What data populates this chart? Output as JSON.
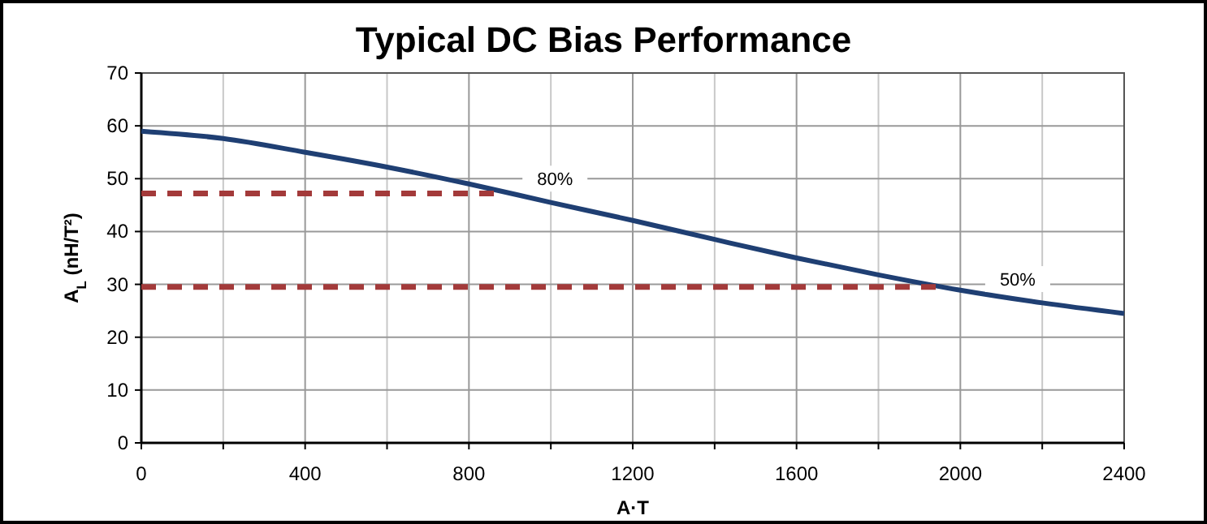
{
  "chart_data": {
    "type": "line",
    "title": "Typical DC Bias Performance",
    "xlabel": "A·T",
    "ylabel": "A$_{L}$ (nH/T²)",
    "series": [
      {
        "color": "#1f3f73",
        "x": [
          0,
          200,
          400,
          600,
          800,
          1000,
          1200,
          1400,
          1600,
          1800,
          2000,
          2200,
          2400
        ],
        "values": [
          59,
          57.6,
          55,
          52.2,
          49,
          45.5,
          42.1,
          38.5,
          35,
          31.8,
          28.9,
          26.5,
          24.5
        ],
        "line_style": "solid"
      },
      {
        "color": "#a33a3a",
        "x": [
          0,
          870
        ],
        "values": [
          47.2,
          47.2
        ],
        "line_style": "dashed"
      },
      {
        "color": "#a33a3a",
        "x": [
          0,
          1940
        ],
        "values": [
          29.5,
          29.5
        ],
        "line_style": "dashed"
      }
    ],
    "annotations": [
      {
        "text": "80%",
        "x": 1010,
        "y": 50
      },
      {
        "text": "50%",
        "x": 2140,
        "y": 31
      }
    ],
    "xlim": [
      0,
      2400
    ],
    "xticks": [
      0,
      {
        "value": 200,
        "label": null
      },
      400,
      {
        "value": 600,
        "label": null
      },
      800,
      {
        "value": 1000,
        "label": null
      },
      1200,
      {
        "value": 1400,
        "label": null
      },
      1600,
      {
        "value": 1800,
        "label": null
      },
      2000,
      {
        "value": 2200,
        "label": null
      },
      2400
    ],
    "ylim": [
      0,
      70
    ],
    "yticks": [
      0,
      10,
      20,
      30,
      40,
      50,
      60,
      70
    ],
    "grid": true,
    "marker": "none"
  }
}
